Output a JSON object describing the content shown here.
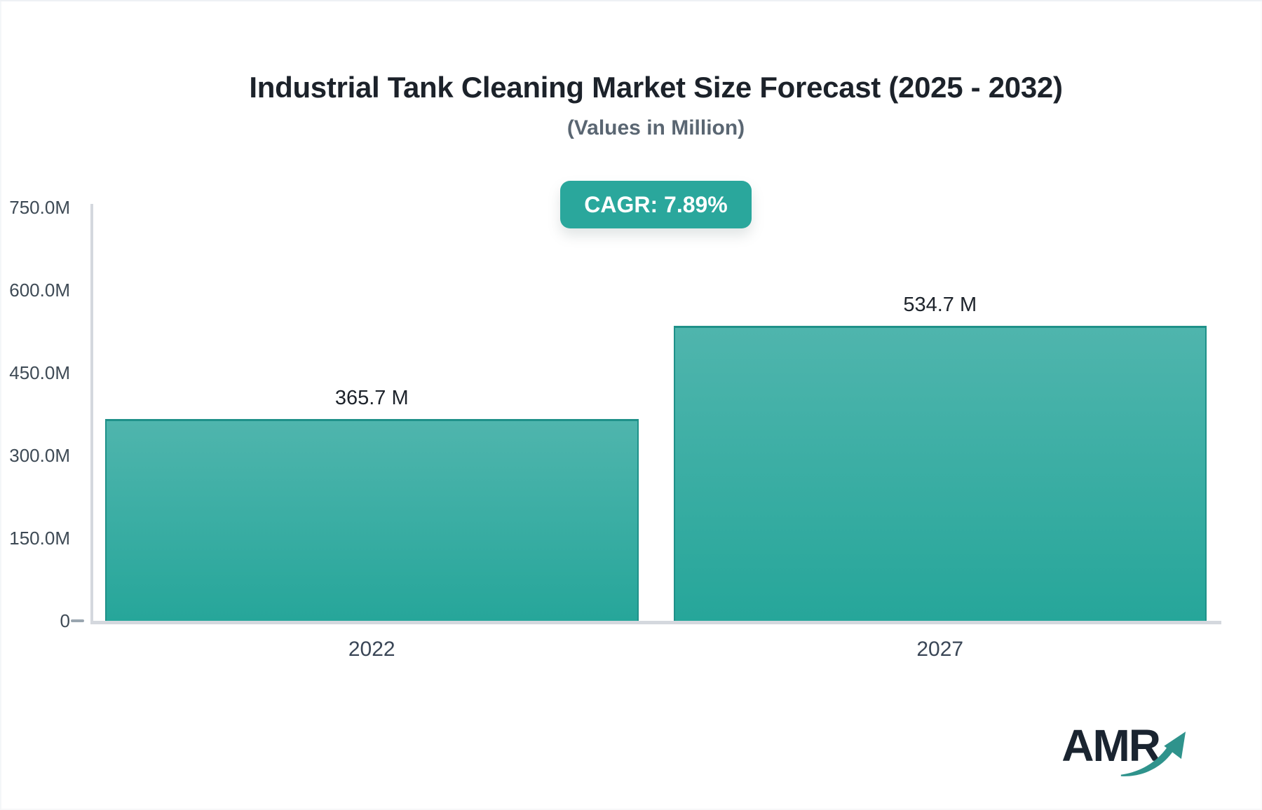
{
  "header": {
    "title": "Industrial Tank Cleaning Market Size Forecast (2025 - 2032)",
    "subtitle": "(Values in Million)"
  },
  "cagr_badge": {
    "text": "CAGR: 7.89%",
    "bg_color": "#2aa79c",
    "text_color": "#ffffff"
  },
  "chart_data": {
    "type": "bar",
    "title": "Industrial Tank Cleaning Market Size Forecast (2025 - 2032)",
    "subtitle": "(Values in Million)",
    "cagr": "7.89%",
    "categories": [
      "2022",
      "2027"
    ],
    "values": [
      365.7,
      534.7
    ],
    "value_labels": [
      "365.7 M",
      "534.7 M"
    ],
    "xlabel": "",
    "ylabel": "",
    "ylim": [
      0,
      750
    ],
    "yticks": [
      {
        "value": 0,
        "label": "0"
      },
      {
        "value": 150,
        "label": "150.0M"
      },
      {
        "value": 300,
        "label": "300.0M"
      },
      {
        "value": 450,
        "label": "450.0M"
      },
      {
        "value": 600,
        "label": "600.0M"
      },
      {
        "value": 750,
        "label": "750.0M"
      }
    ],
    "grid": false,
    "legend": false,
    "bar_color_top": "#4fb5ad",
    "bar_color_bottom": "#26a69a",
    "bar_border_color": "#1f9189",
    "axis_line_color": "#d4d8de",
    "tick_text_color": "#3e4a55"
  },
  "logo": {
    "text": "AMR",
    "arrow_icon": "trend-up-arrow",
    "text_color": "#1a2430",
    "arrow_color": "#2f938c"
  }
}
